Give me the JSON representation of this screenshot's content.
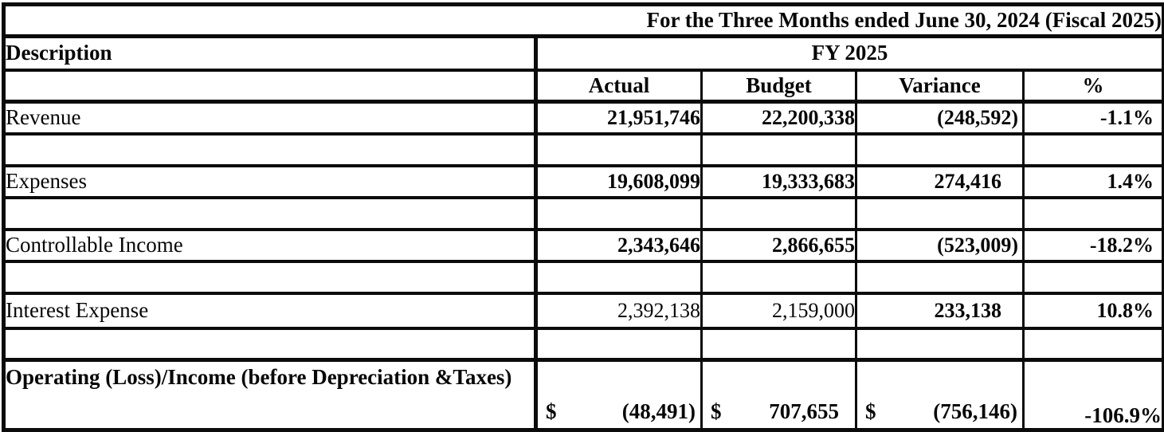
{
  "title": "For the Three Months ended June 30, 2024 (Fiscal 2025)",
  "table": {
    "description_header": "Description",
    "fiscal_year_header": "FY 2025",
    "columns": [
      "Actual",
      "Budget",
      "Variance",
      "%"
    ],
    "rows": [
      {
        "label": "Revenue",
        "actual": "21,951,746",
        "budget": "22,200,338",
        "variance": "(248,592)",
        "percent": "-1.1%"
      },
      {
        "label": "Expenses",
        "actual": "19,608,099",
        "budget": "19,333,683",
        "variance": "274,416",
        "percent": "1.4%"
      },
      {
        "label": "Controllable Income",
        "actual": "2,343,646",
        "budget": "2,866,655",
        "variance": "(523,009)",
        "percent": "-18.2%"
      },
      {
        "label": "Interest Expense",
        "actual": "2,392,138",
        "budget": "2,159,000",
        "variance": "233,138",
        "percent": "10.8%"
      }
    ],
    "summary_row": {
      "label": "Operating (Loss)/Income (before Depreciation &Taxes)",
      "currency_symbol": "$",
      "actual": "(48,491)",
      "budget": "707,655",
      "variance": "(756,146)",
      "percent": "-106.9%"
    }
  }
}
